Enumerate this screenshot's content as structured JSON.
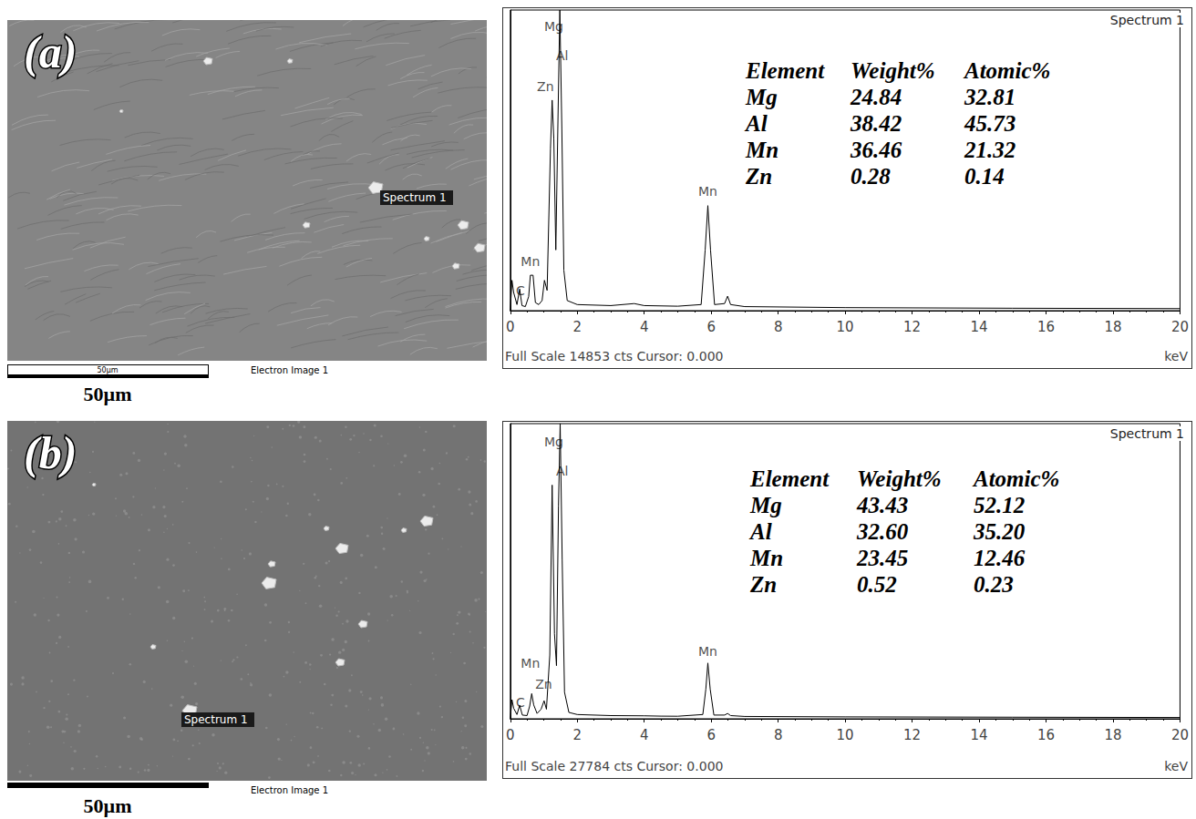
{
  "images": [
    {
      "label": "(a)",
      "marker": "Spectrum 1",
      "caption": "Electron Image 1",
      "scale_bar": "50µm",
      "scale_bar_inner": "50µm"
    },
    {
      "label": "(b)",
      "marker": "Spectrum 1",
      "caption": "Electron Image 1",
      "scale_bar": "50µm"
    }
  ],
  "chart_data": [
    {
      "type": "line",
      "title": "Spectrum 1",
      "x_label": "keV",
      "footer": "Full Scale 14853 cts Cursor: 0.000",
      "x": [
        0,
        0.05,
        0.1,
        0.2,
        0.28,
        0.35,
        0.45,
        0.55,
        0.6,
        0.68,
        0.75,
        0.85,
        0.95,
        1.02,
        1.1,
        1.2,
        1.25,
        1.3,
        1.36,
        1.42,
        1.48,
        1.54,
        1.6,
        1.7,
        2,
        3,
        3.7,
        4,
        5,
        5.7,
        5.82,
        5.9,
        5.98,
        6.1,
        6.4,
        6.49,
        6.58,
        7,
        10,
        15,
        20
      ],
      "values": [
        0,
        1500,
        900,
        300,
        1070,
        250,
        200,
        700,
        1750,
        1750,
        400,
        300,
        500,
        1500,
        1000,
        8000,
        10400,
        8500,
        3000,
        9000,
        14853,
        9000,
        2000,
        500,
        300,
        250,
        350,
        250,
        220,
        300,
        3000,
        5190,
        3000,
        300,
        350,
        716,
        300,
        200,
        150,
        120,
        100
      ],
      "color": "#000000",
      "xlim": [
        0,
        20
      ],
      "xticks": [
        0,
        2,
        4,
        6,
        8,
        10,
        12,
        14,
        16,
        18,
        20
      ],
      "ylim": [
        0,
        14853
      ],
      "tick_labels": "x",
      "grid": false,
      "annotations": [
        {
          "text": "Mg",
          "x": 1.3,
          "y": 14050
        },
        {
          "text": "Al",
          "x": 1.55,
          "y": 12600
        },
        {
          "text": "Zn",
          "x": 1.05,
          "y": 11050
        },
        {
          "text": "Mn",
          "x": 0.6,
          "y": 2420
        },
        {
          "text": "C",
          "x": 0.3,
          "y": 980
        },
        {
          "text": "Mn",
          "x": 5.9,
          "y": 5900
        }
      ],
      "table": {
        "columns": [
          "Element",
          "Weight%",
          "Atomic%"
        ],
        "rows": [
          [
            "Mg",
            "24.84",
            "32.81"
          ],
          [
            "Al",
            "38.42",
            "45.73"
          ],
          [
            "Mn",
            "36.46",
            "21.32"
          ],
          [
            "Zn",
            "0.28",
            "0.14"
          ]
        ]
      }
    },
    {
      "type": "line",
      "title": "Spectrum 1",
      "x_label": "keV",
      "footer": "Full Scale 27784 cts Cursor: 0.000",
      "x": [
        0,
        0.05,
        0.1,
        0.2,
        0.28,
        0.36,
        0.5,
        0.58,
        0.64,
        0.7,
        0.8,
        0.92,
        1.01,
        1.08,
        1.18,
        1.25,
        1.32,
        1.38,
        1.44,
        1.49,
        1.55,
        1.62,
        1.75,
        2,
        3,
        4,
        4.5,
        5,
        5.75,
        5.84,
        5.9,
        5.97,
        6.08,
        6.4,
        6.49,
        6.58,
        7,
        10,
        15,
        20
      ],
      "values": [
        0,
        1800,
        1000,
        400,
        1270,
        350,
        300,
        1200,
        2370,
        1300,
        500,
        900,
        1700,
        900,
        6000,
        22000,
        8000,
        5000,
        20000,
        27784,
        15000,
        2500,
        600,
        400,
        300,
        280,
        250,
        240,
        400,
        2800,
        5250,
        2800,
        350,
        350,
        500,
        300,
        220,
        180,
        150,
        120
      ],
      "color": "#000000",
      "xlim": [
        0,
        20
      ],
      "xticks": [
        0,
        2,
        4,
        6,
        8,
        10,
        12,
        14,
        16,
        18,
        20
      ],
      "ylim": [
        0,
        27784
      ],
      "tick_labels": "x",
      "grid": false,
      "annotations": [
        {
          "text": "Mg",
          "x": 1.3,
          "y": 26100
        },
        {
          "text": "Al",
          "x": 1.55,
          "y": 23300
        },
        {
          "text": "Mn",
          "x": 0.6,
          "y": 5250
        },
        {
          "text": "Zn",
          "x": 1.0,
          "y": 3220
        },
        {
          "text": "C",
          "x": 0.3,
          "y": 1520
        },
        {
          "text": "Mn",
          "x": 5.9,
          "y": 6350
        }
      ],
      "table": {
        "columns": [
          "Element",
          "Weight%",
          "Atomic%"
        ],
        "rows": [
          [
            "Mg",
            "43.43",
            "52.12"
          ],
          [
            "Al",
            "32.60",
            "35.20"
          ],
          [
            "Mn",
            "23.45",
            "12.46"
          ],
          [
            "Zn",
            "0.52",
            "0.23"
          ]
        ]
      }
    }
  ]
}
